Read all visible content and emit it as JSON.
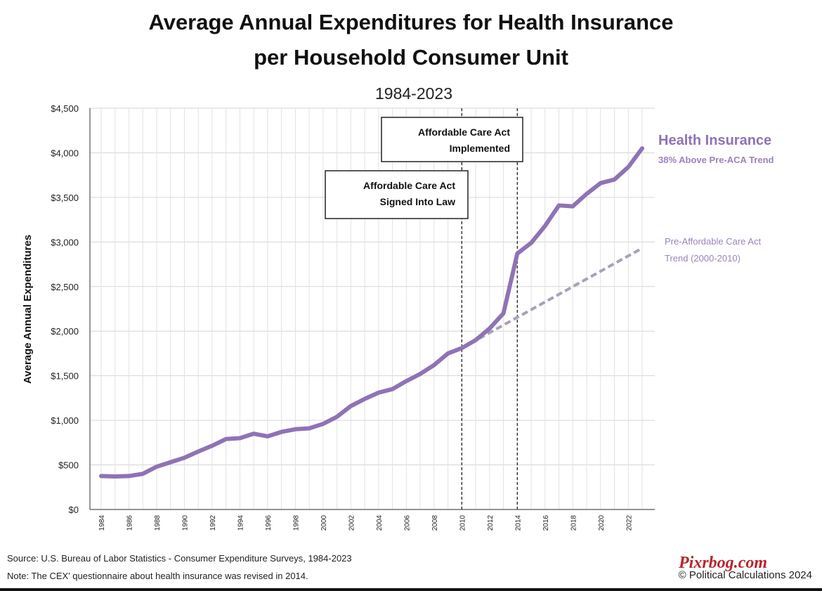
{
  "chart_data": {
    "type": "line",
    "title": [
      "Average Annual Expenditures for Health Insurance",
      "per Household Consumer Unit"
    ],
    "subtitle": "1984-2023",
    "ylabel": "Average Annual Expenditures",
    "xlabel": "",
    "ylim": [
      0,
      4500
    ],
    "xlim": [
      1984,
      2023
    ],
    "yticks": [
      0,
      500,
      1000,
      1500,
      2000,
      2500,
      3000,
      3500,
      4000,
      4500
    ],
    "ytick_labels": [
      "$0",
      "$500",
      "$1,000",
      "$1,500",
      "$2,000",
      "$2,500",
      "$3,000",
      "$3,500",
      "$4,000",
      "$4,500"
    ],
    "xticks": [
      1984,
      1986,
      1988,
      1990,
      1992,
      1994,
      1996,
      1998,
      2000,
      2002,
      2004,
      2006,
      2008,
      2010,
      2012,
      2014,
      2016,
      2018,
      2020,
      2022
    ],
    "xtick_labels": [
      "1984",
      "1986",
      "1988",
      "1990",
      "1992",
      "1994",
      "1996",
      "1998",
      "2000",
      "2002",
      "2004",
      "2006",
      "2008",
      "2010",
      "2012",
      "2014",
      "2016",
      "2018",
      "2020",
      "2022"
    ],
    "grid": true,
    "series": [
      {
        "name": "Health Insurance",
        "sublabel": "38% Above Pre-ACA Trend",
        "color": "#8f73b5",
        "style": "solid",
        "x": [
          1984,
          1985,
          1986,
          1987,
          1988,
          1989,
          1990,
          1991,
          1992,
          1993,
          1994,
          1995,
          1996,
          1997,
          1998,
          1999,
          2000,
          2001,
          2002,
          2003,
          2004,
          2005,
          2006,
          2007,
          2008,
          2009,
          2010,
          2011,
          2012,
          2013,
          2014,
          2015,
          2016,
          2017,
          2018,
          2019,
          2020,
          2021,
          2022,
          2023
        ],
        "y": [
          375,
          370,
          375,
          400,
          480,
          530,
          580,
          650,
          715,
          790,
          800,
          850,
          820,
          870,
          900,
          910,
          960,
          1040,
          1160,
          1240,
          1310,
          1350,
          1440,
          1520,
          1620,
          1750,
          1810,
          1900,
          2030,
          2200,
          2870,
          2990,
          3180,
          3410,
          3400,
          3540,
          3660,
          3700,
          3840,
          4050
        ]
      },
      {
        "name": "Pre-Affordable Care Act Trend (2000-2010)",
        "label_lines": [
          "Pre-Affordable Care Act",
          "Trend (2000-2010)"
        ],
        "color": "#a8a0b8",
        "style": "dashed",
        "x": [
          2010,
          2023
        ],
        "y": [
          1810,
          2930
        ]
      }
    ],
    "annotations": [
      {
        "x": 2010,
        "lines": [
          "Affordable Care Act",
          "Signed Into Law"
        ]
      },
      {
        "x": 2014,
        "lines": [
          "Affordable Care Act",
          "Implemented"
        ]
      }
    ]
  },
  "footer": {
    "source": "Source: U.S. Bureau of Labor Statistics - Consumer Expenditure Surveys, 1984-2023",
    "note": "Note: The CEX' questionnaire about health insurance was revised in 2014.",
    "credit": "© Political Calculations 2024",
    "watermark": "Pixrbog.com"
  }
}
